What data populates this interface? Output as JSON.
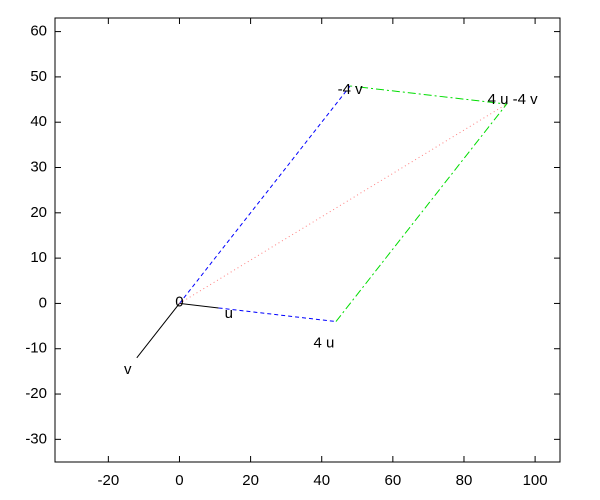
{
  "chart_data": {
    "type": "vector-diagram",
    "xlim": [
      -35,
      107
    ],
    "ylim": [
      -35,
      63
    ],
    "xticks": [
      -20,
      0,
      20,
      40,
      60,
      80,
      100
    ],
    "yticks": [
      -30,
      -20,
      -10,
      0,
      10,
      20,
      30,
      40,
      50,
      60
    ],
    "series": [
      {
        "color": "#000000",
        "style": "solid",
        "x": [
          -12,
          0,
          11
        ],
        "y": [
          -12,
          0,
          -1
        ]
      },
      {
        "color": "#0000ff",
        "style": "dashed",
        "x": [
          11,
          44
        ],
        "y": [
          -1,
          -4
        ]
      },
      {
        "color": "#0000ff",
        "style": "dashed",
        "x": [
          0,
          48
        ],
        "y": [
          0,
          48
        ]
      },
      {
        "color": "#00dd00",
        "style": "dashdot",
        "x": [
          44,
          92,
          48
        ],
        "y": [
          -4,
          44,
          48
        ]
      },
      {
        "color": "#ff8080",
        "style": "dotted",
        "x": [
          0,
          92
        ],
        "y": [
          0,
          44
        ]
      }
    ],
    "annotations": [
      {
        "label": "0",
        "x": 0,
        "y": 0
      },
      {
        "label": "u",
        "x": 11,
        "y": -1
      },
      {
        "label": "4 u",
        "x": 44,
        "y": -4
      },
      {
        "label": "v",
        "x": -12,
        "y": -12
      },
      {
        "label": "-4 v",
        "x": 48,
        "y": 48
      },
      {
        "label": "4 u -4 v",
        "x": 92,
        "y": 44
      }
    ]
  }
}
